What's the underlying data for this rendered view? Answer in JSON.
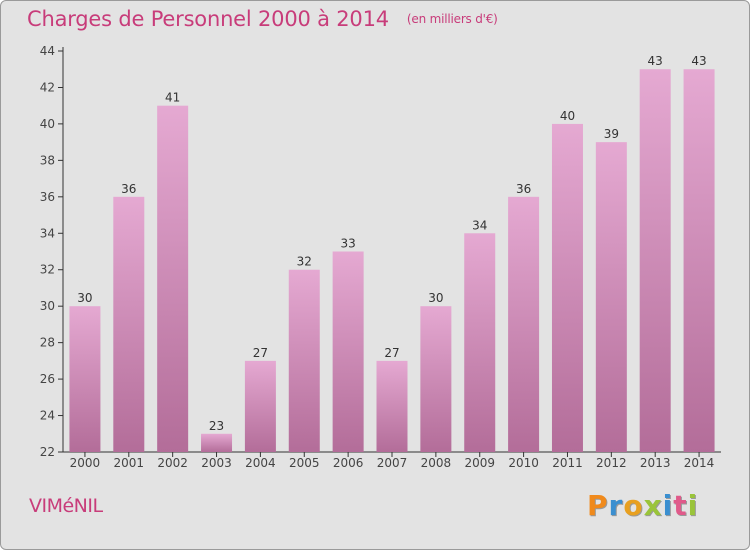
{
  "chart_data": {
    "type": "bar",
    "title": "Charges de Personnel 2000 à 2014",
    "subtitle": "(en milliers d'€)",
    "categories": [
      "2000",
      "2001",
      "2002",
      "2003",
      "2004",
      "2005",
      "2006",
      "2007",
      "2008",
      "2009",
      "2010",
      "2011",
      "2012",
      "2013",
      "2014"
    ],
    "values": [
      30,
      36,
      41,
      23,
      27,
      32,
      33,
      27,
      30,
      34,
      36,
      40,
      39,
      43,
      43
    ],
    "ylim": [
      22,
      44
    ],
    "yticks": [
      22,
      24,
      26,
      28,
      30,
      32,
      34,
      36,
      38,
      40,
      42,
      44
    ],
    "grid": false,
    "bar_color_top": "#e5a9d2",
    "bar_color_bottom": "#b36d99",
    "axis_color": "#333333"
  },
  "footer": {
    "town": "VIMéNIL",
    "brand": [
      "P",
      "r",
      "o",
      "x",
      "i",
      "t",
      "i"
    ],
    "brand_colors": [
      "#f08a1c",
      "#3a8fd0",
      "#e8a020",
      "#9ac43a",
      "#3a8fd0",
      "#e05a8a",
      "#9ac43a"
    ]
  },
  "colors": {
    "background": "#e3e3e3",
    "title": "#c83c7a"
  }
}
